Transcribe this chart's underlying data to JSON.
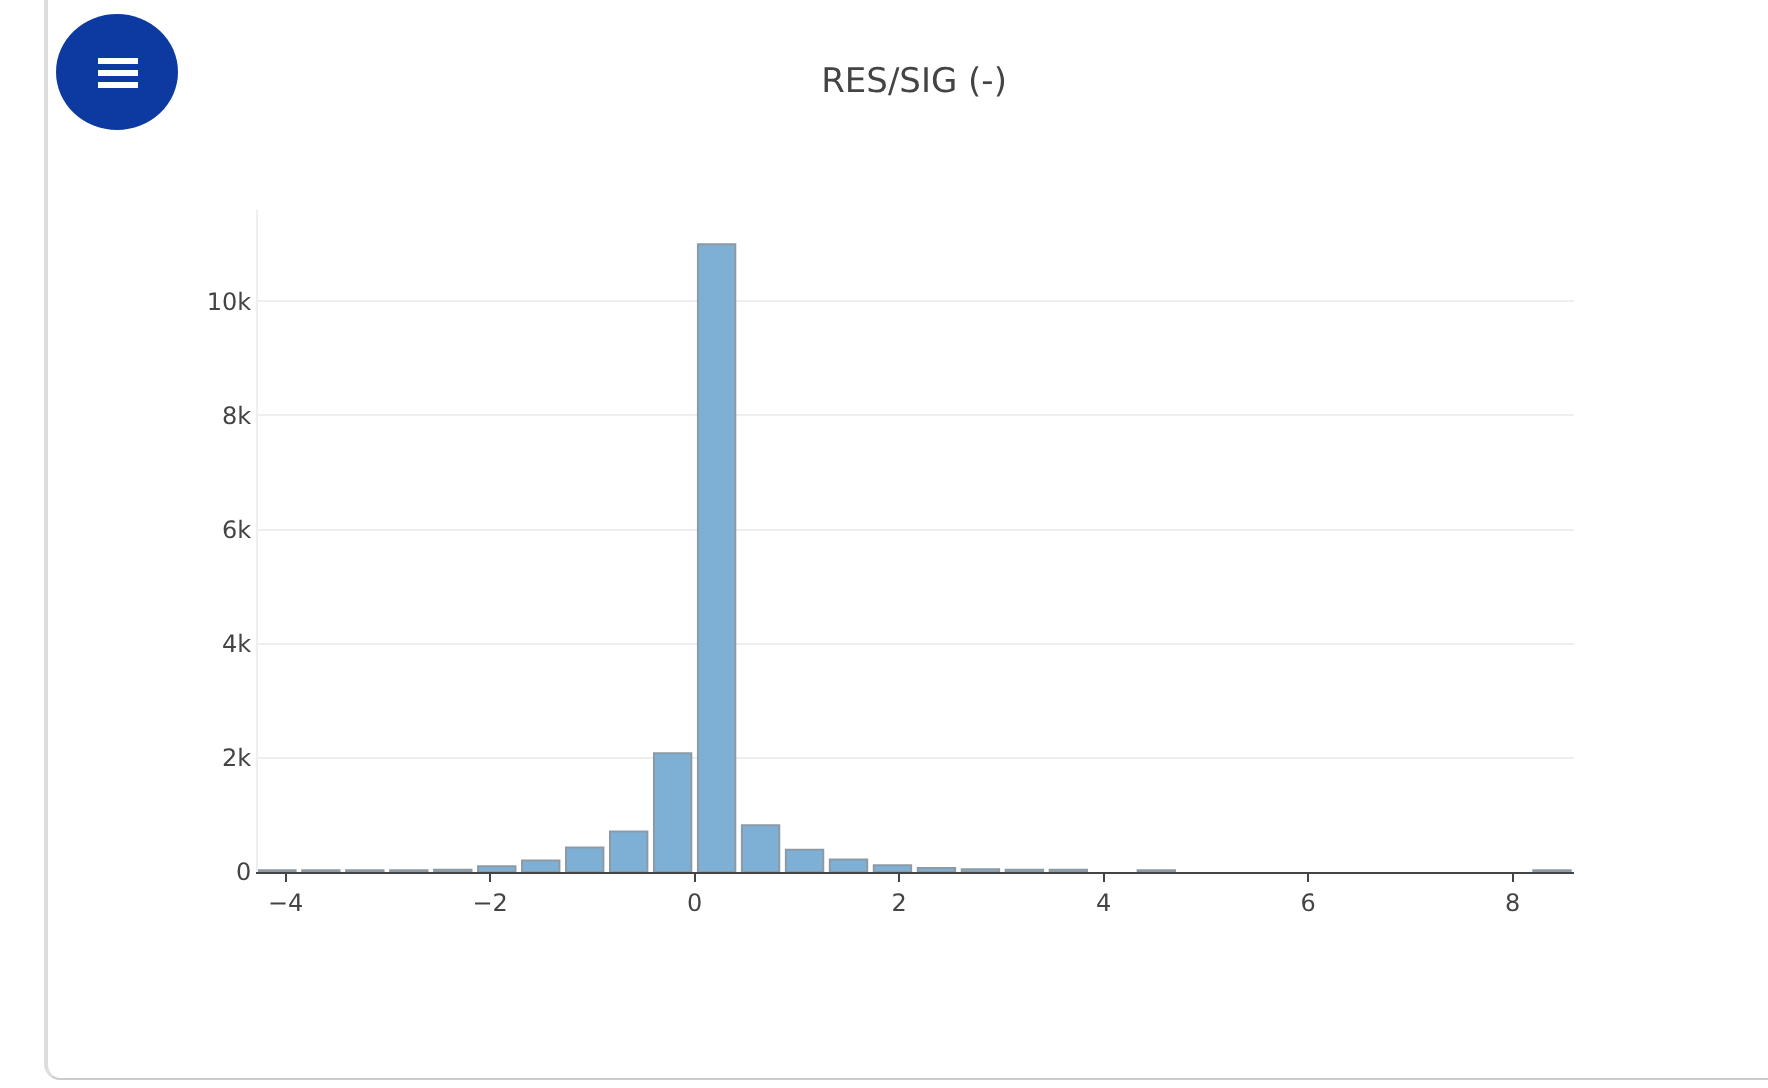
{
  "chart_data": {
    "type": "histogram",
    "title": "RES/SIG (-)",
    "bins": [
      -4.3,
      -3.87,
      -3.44,
      -3.01,
      -2.58,
      -2.15,
      -1.72,
      -1.29,
      -0.86,
      -0.43,
      0,
      0.43,
      0.86,
      1.29,
      1.72,
      2.15,
      2.58,
      3.01,
      3.44,
      3.87,
      4.3,
      4.73,
      5.16,
      5.59,
      6.02,
      6.45,
      6.88,
      7.31,
      7.74,
      8.17,
      8.6
    ],
    "values": [
      30,
      30,
      30,
      30,
      40,
      100,
      200,
      430,
      710,
      2080,
      11000,
      820,
      390,
      220,
      120,
      70,
      50,
      40,
      40,
      0,
      30,
      0,
      0,
      0,
      0,
      0,
      0,
      0,
      0,
      30
    ],
    "color": "#7eb0d5",
    "xlim": [
      -4.27,
      8.6
    ],
    "xticks": [
      {
        "value": -4,
        "label": "−4"
      },
      {
        "value": -2,
        "label": "−2"
      },
      0,
      2,
      4,
      6,
      8
    ],
    "ylim": [
      0,
      11600
    ],
    "yticks": [
      0,
      {
        "value": 2000,
        "label": "2k"
      },
      {
        "value": 4000,
        "label": "4k"
      },
      {
        "value": 6000,
        "label": "6k"
      },
      {
        "value": 8000,
        "label": "8k"
      },
      {
        "value": 10000,
        "label": "10k"
      }
    ],
    "grid": "y"
  }
}
